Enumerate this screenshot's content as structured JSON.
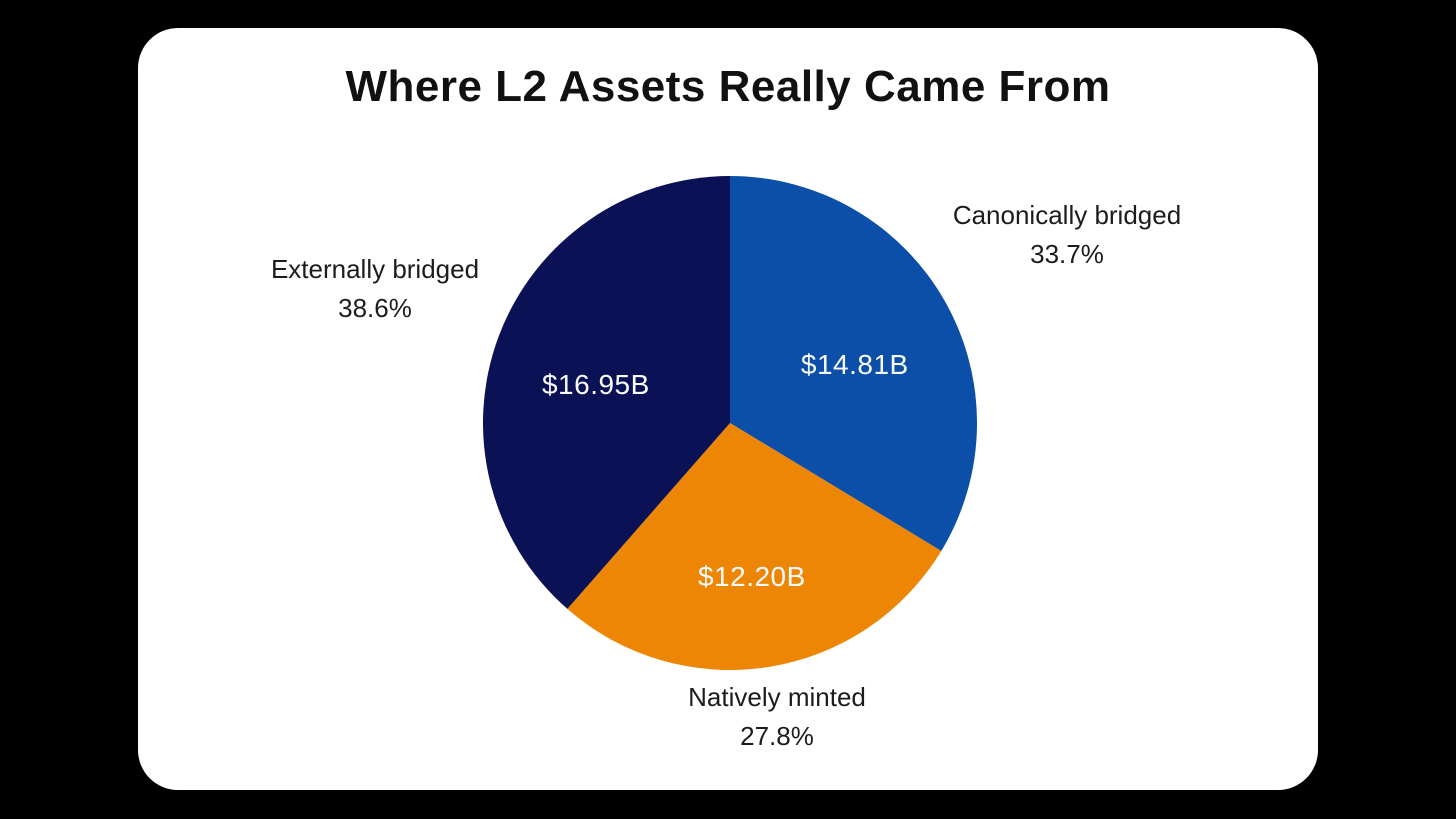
{
  "title": "Where L2 Assets Really Came From",
  "chart_data": {
    "type": "pie",
    "title": "Where L2 Assets Really Came From",
    "direction": "clockwise",
    "start_angle_deg": 0,
    "legend_position": "none",
    "labels": "category and percent outside, dollar value inside slice",
    "slices": [
      {
        "label": "Canonically bridged",
        "value_billions_usd": 14.81,
        "value_label": "$14.81B",
        "percent": 33.7,
        "percent_label": "33.7%",
        "color": "#0B4FA8"
      },
      {
        "label": "Natively minted",
        "value_billions_usd": 12.2,
        "value_label": "$12.20B",
        "percent": 27.8,
        "percent_label": "27.8%",
        "color": "#EC8604"
      },
      {
        "label": "Externally bridged",
        "value_billions_usd": 16.95,
        "value_label": "$16.95B",
        "percent": 38.6,
        "percent_label": "38.6%",
        "color": "#0A1155"
      }
    ]
  },
  "colors": {
    "page_background": "#000000",
    "card_background": "#ffffff",
    "title_text": "#111111",
    "outer_label_text": "#1c1c1c",
    "slice_value_text": "#fafafa"
  }
}
